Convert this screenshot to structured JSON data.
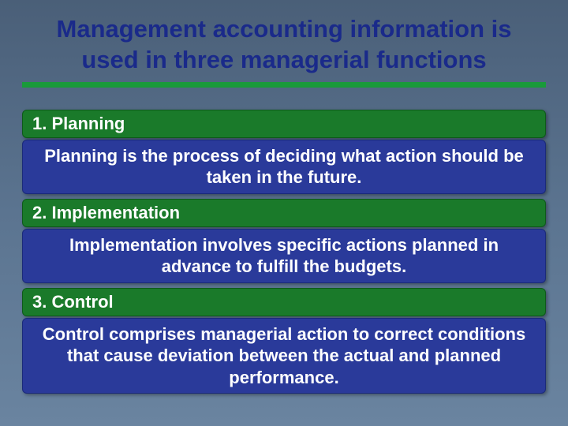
{
  "title": "Management accounting information is used in three managerial functions",
  "colors": {
    "background_gradient_top": "#4a5f78",
    "background_gradient_bottom": "#6a84a0",
    "title_color": "#1a2a8a",
    "underline_color": "#1a9a3a",
    "header_bg": "#1a7a2a",
    "header_border": "#0d5a1a",
    "body_bg": "#2a3a9a",
    "body_border": "#1a2a7a",
    "text_color": "#ffffff"
  },
  "typography": {
    "title_fontsize": 31,
    "title_weight": "bold",
    "box_fontsize": 22,
    "box_weight": "bold",
    "font_family": "Arial"
  },
  "sections": [
    {
      "header": "1. Planning",
      "body": "Planning is the process of deciding what action should be taken in the future."
    },
    {
      "header": "2. Implementation",
      "body": "Implementation involves specific actions planned in advance to fulfill the budgets."
    },
    {
      "header": "3. Control",
      "body": "Control comprises managerial action to correct conditions that cause deviation between the actual and planned performance."
    }
  ]
}
